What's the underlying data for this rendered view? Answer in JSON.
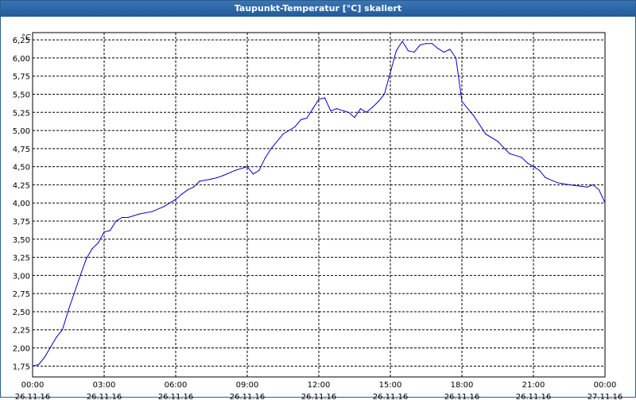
{
  "window": {
    "title": "Taupunkt-Temperatur [°C] skaliert"
  },
  "colors": {
    "titlebar": "#2b62a0",
    "series_line": "#0000cc",
    "grid": "#000000"
  },
  "chart_data": {
    "type": "line",
    "title": "Taupunkt-Temperatur [°C] skaliert",
    "y_unit_label": "°C",
    "ylim": [
      1.6,
      6.35
    ],
    "y_ticks": [
      1.75,
      2.0,
      2.25,
      2.5,
      2.75,
      3.0,
      3.25,
      3.5,
      3.75,
      4.0,
      4.25,
      4.5,
      4.75,
      5.0,
      5.25,
      5.5,
      5.75,
      6.0,
      6.25
    ],
    "y_tick_labels": [
      "1,75",
      "2,00",
      "2,25",
      "2,50",
      "2,75",
      "3,00",
      "3,25",
      "3,50",
      "3,75",
      "4,00",
      "4,25",
      "4,50",
      "4,75",
      "5,00",
      "5,25",
      "5,50",
      "5,75",
      "6,00",
      "6,25"
    ],
    "xlim": [
      "26.11.16 00:00",
      "27.11.16 00:00"
    ],
    "x_ticks": [
      {
        "time": "00:00",
        "date": "26.11.16"
      },
      {
        "time": "03:00",
        "date": "26.11.16"
      },
      {
        "time": "06:00",
        "date": "26.11.16"
      },
      {
        "time": "09:00",
        "date": "26.11.16"
      },
      {
        "time": "12:00",
        "date": "26.11.16"
      },
      {
        "time": "15:00",
        "date": "26.11.16"
      },
      {
        "time": "18:00",
        "date": "26.11.16"
      },
      {
        "time": "21:00",
        "date": "26.11.16"
      },
      {
        "time": "00:00",
        "date": "27.11.16"
      }
    ],
    "grid": true,
    "series": [
      {
        "x": [
          "00:00",
          "00:15",
          "00:30",
          "01:00",
          "01:15",
          "01:30",
          "02:00",
          "02:15",
          "02:30",
          "02:45",
          "03:00",
          "03:15",
          "03:30",
          "03:45",
          "04:00",
          "04:30",
          "05:00",
          "05:30",
          "06:00",
          "06:15",
          "06:30",
          "06:45",
          "07:00",
          "07:30",
          "07:45",
          "08:00",
          "08:30",
          "09:00",
          "09:15",
          "09:30",
          "09:45",
          "10:00",
          "10:30",
          "11:00",
          "11:15",
          "11:30",
          "11:45",
          "12:00",
          "12:15",
          "12:30",
          "12:45",
          "13:15",
          "13:30",
          "13:45",
          "14:00",
          "14:15",
          "14:30",
          "14:45",
          "15:00",
          "15:15",
          "15:30",
          "15:45",
          "16:00",
          "16:15",
          "16:30",
          "16:45",
          "17:00",
          "17:15",
          "17:30",
          "17:45",
          "18:00",
          "18:30",
          "19:00",
          "19:30",
          "20:00",
          "20:30",
          "20:45",
          "21:00",
          "21:15",
          "21:30",
          "22:00",
          "22:30",
          "23:00",
          "23:15",
          "23:30",
          "23:45",
          "24:00"
        ],
        "values": [
          1.75,
          1.77,
          1.87,
          2.15,
          2.25,
          2.52,
          3.0,
          3.23,
          3.37,
          3.45,
          3.6,
          3.62,
          3.75,
          3.8,
          3.8,
          3.85,
          3.88,
          3.95,
          4.05,
          4.12,
          4.18,
          4.22,
          4.3,
          4.33,
          4.35,
          4.38,
          4.45,
          4.5,
          4.4,
          4.45,
          4.62,
          4.75,
          4.95,
          5.05,
          5.15,
          5.17,
          5.3,
          5.43,
          5.45,
          5.27,
          5.3,
          5.25,
          5.18,
          5.3,
          5.25,
          5.32,
          5.4,
          5.5,
          5.8,
          6.1,
          6.23,
          6.1,
          6.08,
          6.18,
          6.2,
          6.2,
          6.13,
          6.08,
          6.12,
          6.0,
          5.4,
          5.2,
          4.95,
          4.85,
          4.68,
          4.63,
          4.55,
          4.5,
          4.45,
          4.35,
          4.28,
          4.25,
          4.23,
          4.22,
          4.25,
          4.18,
          4.0
        ]
      }
    ]
  }
}
